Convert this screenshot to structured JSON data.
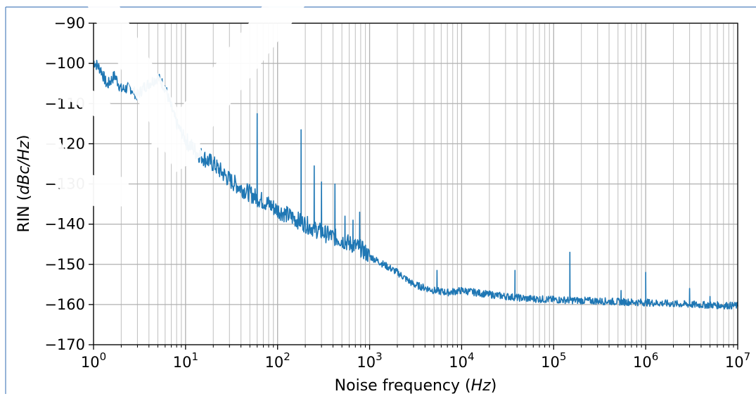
{
  "chart_data": {
    "type": "line",
    "xscale": "log",
    "xlim": [
      1,
      10000000
    ],
    "ylim": [
      -170,
      -90
    ],
    "xlabel": {
      "text": "Noise frequency (",
      "unit": "Hz",
      "suffix": ")"
    },
    "ylabel": {
      "text": "RIN (",
      "unit": "dBc/Hz",
      "suffix": ")"
    },
    "grid": true,
    "x_ticks": [
      {
        "base": "10",
        "exp": "0",
        "value": 1
      },
      {
        "base": "10",
        "exp": "1",
        "value": 10
      },
      {
        "base": "10",
        "exp": "2",
        "value": 100
      },
      {
        "base": "10",
        "exp": "3",
        "value": 1000
      },
      {
        "base": "10",
        "exp": "4",
        "value": 10000
      },
      {
        "base": "10",
        "exp": "5",
        "value": 100000
      },
      {
        "base": "10",
        "exp": "6",
        "value": 1000000
      },
      {
        "base": "10",
        "exp": "7",
        "value": 10000000
      }
    ],
    "y_ticks": [
      "−90",
      "−100",
      "−110",
      "−120",
      "−130",
      "−140",
      "−150",
      "−160",
      "−170"
    ],
    "y_tick_values": [
      -90,
      -100,
      -110,
      -120,
      -130,
      -140,
      -150,
      -160,
      -170
    ],
    "series": [
      {
        "color": "#1f77b4",
        "baseline": [
          [
            1,
            -99.5
          ],
          [
            1.2,
            -101.5
          ],
          [
            1.4,
            -105.5
          ],
          [
            1.7,
            -103
          ],
          [
            2,
            -106.5
          ],
          [
            2.5,
            -106
          ],
          [
            3,
            -108
          ],
          [
            3.5,
            -106
          ],
          [
            4,
            -105
          ],
          [
            5,
            -103.5
          ],
          [
            6,
            -106
          ],
          [
            7,
            -111
          ],
          [
            8,
            -115
          ],
          [
            10,
            -119
          ],
          [
            13,
            -122
          ],
          [
            17,
            -124
          ],
          [
            20,
            -125
          ],
          [
            30,
            -129
          ],
          [
            40,
            -131
          ],
          [
            60,
            -133.5
          ],
          [
            80,
            -135
          ],
          [
            100,
            -136.5
          ],
          [
            150,
            -138.5
          ],
          [
            200,
            -140
          ],
          [
            300,
            -142
          ],
          [
            500,
            -144
          ],
          [
            800,
            -146
          ],
          [
            1000,
            -148
          ],
          [
            2000,
            -152
          ],
          [
            3000,
            -155
          ],
          [
            5000,
            -156.5
          ],
          [
            7000,
            -157
          ],
          [
            10000,
            -156.5
          ],
          [
            20000,
            -157.5
          ],
          [
            50000,
            -158.5
          ],
          [
            100000,
            -158.8
          ],
          [
            200000,
            -159
          ],
          [
            500000,
            -159.3
          ],
          [
            1000000,
            -159.5
          ],
          [
            3000000,
            -160
          ],
          [
            10000000,
            -160.3
          ]
        ],
        "spikes": [
          [
            60,
            -112.5
          ],
          [
            180,
            -116.5
          ],
          [
            250,
            -125.5
          ],
          [
            300,
            -129.5
          ],
          [
            420,
            -130
          ],
          [
            540,
            -138
          ],
          [
            660,
            -139
          ],
          [
            780,
            -137
          ],
          [
            5400,
            -151.5
          ],
          [
            38000,
            -151.5
          ],
          [
            150000,
            -147
          ],
          [
            540000,
            -156.5
          ],
          [
            1000000,
            -152
          ],
          [
            3000000,
            -156
          ],
          [
            5000000,
            -158
          ]
        ]
      }
    ]
  }
}
